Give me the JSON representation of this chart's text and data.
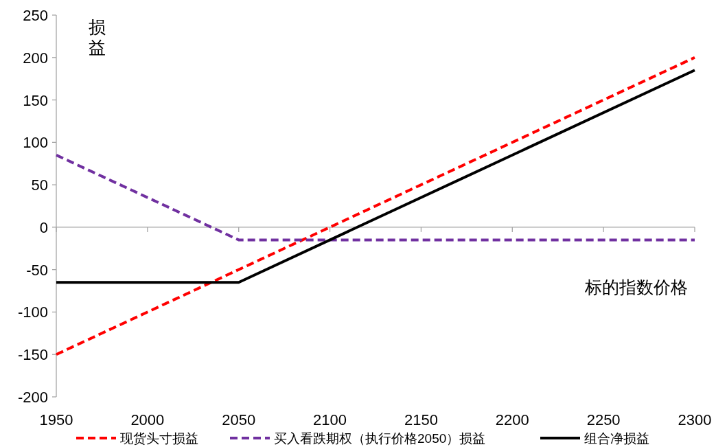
{
  "chart_data": {
    "type": "line",
    "xlabel": "标的指数价格",
    "ylabel": "损益",
    "xlim": [
      1950,
      2300
    ],
    "xticks": [
      1950,
      2000,
      2050,
      2100,
      2150,
      2200,
      2250,
      2300
    ],
    "ylim": [
      -200,
      250
    ],
    "yticks": [
      -200,
      -150,
      -100,
      -50,
      0,
      50,
      100,
      150,
      200,
      250
    ],
    "legend": "bottom",
    "marker": "none",
    "series": [
      {
        "name": "现货头寸损益",
        "color": "#ff0000",
        "line_style": "dashed",
        "x": [
          1950,
          2300
        ],
        "values": [
          -150,
          200
        ]
      },
      {
        "name": "买入看跌期权（执行价格2050）损益",
        "color": "#7030a0",
        "line_style": "dashed",
        "x": [
          1950,
          2050,
          2300
        ],
        "values": [
          85,
          -15,
          -15
        ]
      },
      {
        "name": "组合净损益",
        "color": "#000000",
        "line_style": "solid",
        "x": [
          1950,
          2050,
          2300
        ],
        "values": [
          -65,
          -65,
          185
        ]
      }
    ]
  }
}
